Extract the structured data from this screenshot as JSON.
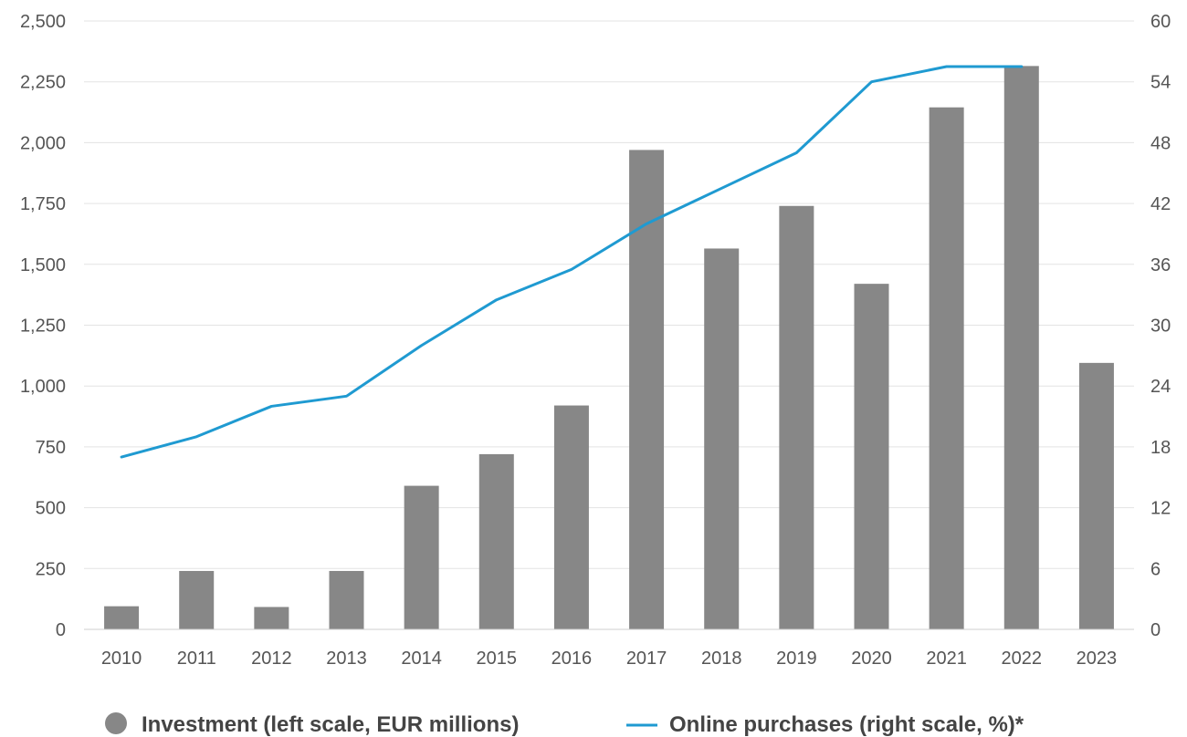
{
  "chart_data": {
    "type": "bar",
    "categories": [
      "2010",
      "2011",
      "2012",
      "2013",
      "2014",
      "2015",
      "2016",
      "2017",
      "2018",
      "2019",
      "2020",
      "2021",
      "2022",
      "2023"
    ],
    "series": [
      {
        "name": "Investment (left scale, EUR millions)",
        "type": "bar",
        "axis": "left",
        "color": "#878787",
        "values": [
          95,
          240,
          92,
          240,
          590,
          720,
          920,
          1970,
          1565,
          1740,
          1420,
          2145,
          2315,
          1095
        ]
      },
      {
        "name": "Online purchases (right scale, %)*",
        "type": "line",
        "axis": "right",
        "color": "#1f9ad1",
        "values": [
          17,
          19,
          22,
          23,
          28,
          32.5,
          35.5,
          40,
          43.5,
          47,
          54,
          55.5,
          55.5,
          null
        ]
      }
    ],
    "y_left": {
      "ylim": [
        0,
        2500
      ],
      "ticks": [
        0,
        250,
        500,
        750,
        1000,
        1250,
        1500,
        1750,
        2000,
        2250,
        2500
      ],
      "tick_labels": [
        "0",
        "250",
        "500",
        "750",
        "1,000",
        "1,250",
        "1,500",
        "1,750",
        "2,000",
        "2,250",
        "2,500"
      ]
    },
    "y_right": {
      "ylim": [
        0,
        60
      ],
      "ticks": [
        0,
        6,
        12,
        18,
        24,
        30,
        36,
        42,
        48,
        54,
        60
      ],
      "tick_labels": [
        "0",
        "6",
        "12",
        "18",
        "24",
        "30",
        "36",
        "42",
        "48",
        "54",
        "60"
      ]
    },
    "title": "",
    "xlabel": "",
    "grid": true,
    "legend_position": "bottom"
  }
}
